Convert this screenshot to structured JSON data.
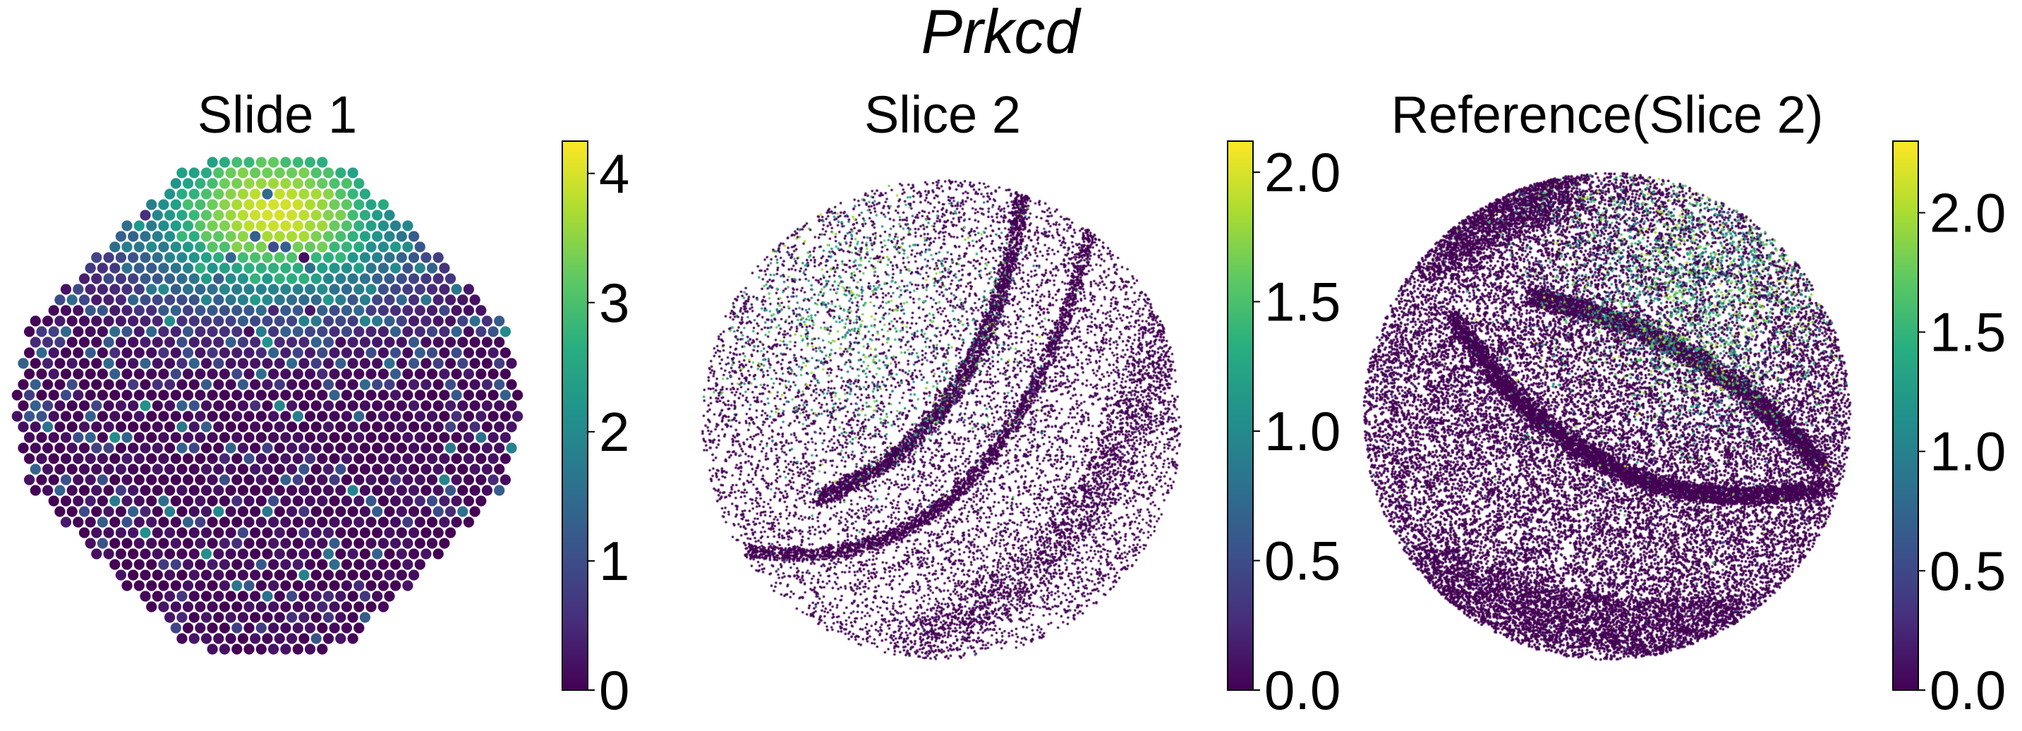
{
  "figure": {
    "title": "Prkcd"
  },
  "chart_data": [
    {
      "type": "scatter",
      "title": "Slide 1",
      "xlabel": "",
      "ylabel": "",
      "grid": false,
      "axes_visible": false,
      "layout": "hexagonal spot grid (Visium-style) forming a circular tissue section",
      "hotspot": "top-center (highest expression)",
      "colormap": "viridis",
      "colorbar": {
        "range": [
          0,
          4.25
        ],
        "ticks": [
          0,
          1,
          2,
          3,
          4
        ],
        "tick_labels": [
          "0",
          "1",
          "2",
          "3",
          "4"
        ]
      }
    },
    {
      "type": "scatter",
      "title": "Slice 2",
      "xlabel": "",
      "ylabel": "",
      "grid": false,
      "axes_visible": false,
      "layout": "single-cell point cloud forming a circular tissue section with curved dense bands",
      "hotspot": "upper-left (moderate expression)",
      "colormap": "viridis",
      "colorbar": {
        "range": [
          0,
          2.12
        ],
        "ticks": [
          0,
          0.5,
          1.0,
          1.5,
          2.0
        ],
        "tick_labels": [
          "0.0",
          "0.5",
          "1.0",
          "1.5",
          "2.0"
        ]
      }
    },
    {
      "type": "scatter",
      "title": "Reference(Slice 2)",
      "xlabel": "",
      "ylabel": "",
      "grid": false,
      "axes_visible": false,
      "layout": "dense single-cell point cloud forming a circular tissue section with curved dense bands",
      "hotspot": "upper-right (moderate-high expression)",
      "colormap": "viridis",
      "colorbar": {
        "range": [
          0,
          2.3
        ],
        "ticks": [
          0,
          0.5,
          1.0,
          1.5,
          2.0
        ],
        "tick_labels": [
          "0.0",
          "0.5",
          "1.0",
          "1.5",
          "2.0"
        ]
      }
    }
  ]
}
